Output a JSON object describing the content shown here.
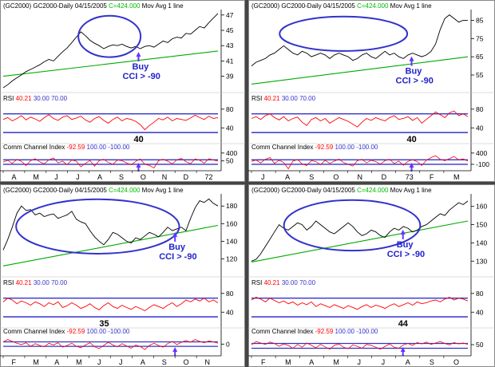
{
  "colors": {
    "price": "#000000",
    "ma": "#00aa00",
    "rsi": "#ff0000",
    "cci": "#ff0000",
    "level": "#3333cc",
    "annotation": "#2222cc",
    "ellipse": "#3333cc",
    "arrow": "#6633ff",
    "header_value": "#ff0000",
    "header_blue": "#3333cc",
    "header_green": "#00bb00",
    "tick": "#000000",
    "separator": "#444444"
  },
  "chart_data": [
    {
      "type": "line",
      "header": {
        "symbol": "(GC2000) GC2000-Daily",
        "date": "04/15/2005",
        "close": "C=424.000",
        "ma": "Mov Avg 1 line"
      },
      "price": {
        "y_ticks": [
          39,
          41,
          43,
          45,
          47
        ],
        "ylim": [
          37.5,
          47.5
        ],
        "values": [
          37.5,
          37.9,
          38.4,
          38.8,
          39.2,
          39.6,
          39.9,
          40.2,
          40.5,
          40.9,
          41.2,
          41.0,
          41.6,
          42.2,
          42.7,
          43.4,
          44.1,
          44.8,
          44.3,
          43.7,
          43.3,
          43.0,
          42.6,
          42.9,
          43.1,
          43.0,
          43.2,
          42.9,
          42.7,
          42.9,
          42.6,
          42.9,
          43.0,
          42.8,
          43.2,
          43.6,
          43.4,
          43.9,
          44.1,
          44.0,
          44.6,
          44.5,
          45.0,
          45.5,
          45.3,
          46.0,
          46.6,
          47.2
        ],
        "ma": [
          39.0,
          42.3
        ],
        "annotation": [
          "Buy",
          "CCI > -90"
        ],
        "ellipse": [
          0.35,
          0.64,
          0.06,
          0.6
        ],
        "arrow_x": 0.63
      },
      "rsi": {
        "label": "RSI",
        "value": "40.21",
        "low": "30.00",
        "high": "70.00",
        "y_ticks": [
          40,
          80
        ],
        "ylim": [
          20,
          95
        ],
        "low_line": 30,
        "high_line": 70,
        "values": [
          58,
          62,
          55,
          60,
          66,
          57,
          63,
          59,
          54,
          62,
          68,
          60,
          56,
          63,
          66,
          58,
          61,
          65,
          57,
          52,
          60,
          64,
          56,
          50,
          58,
          63,
          55,
          60,
          58,
          54,
          47,
          36,
          45,
          52,
          60,
          57,
          63,
          55,
          60,
          58,
          56,
          61,
          67,
          62,
          58,
          65,
          60,
          62
        ],
        "callout": "40",
        "callout_x": 0.63
      },
      "cci": {
        "label": "Comm Channel Index",
        "value": "-92.59",
        "p100": "100.00",
        "m100": "-100.00",
        "y_ticks": [
          400,
          50
        ],
        "ylim": [
          -350,
          500
        ],
        "p_line": 100,
        "m_line": -100,
        "values": [
          0,
          80,
          -60,
          120,
          30,
          -150,
          60,
          150,
          10,
          -80,
          100,
          180,
          -40,
          40,
          -120,
          90,
          40,
          -210,
          -60,
          70,
          -180,
          60,
          120,
          -20,
          -100,
          90,
          60,
          -40,
          -120,
          30,
          140,
          -100,
          -150,
          -260,
          60,
          120,
          40,
          -80,
          100,
          160,
          20,
          -70,
          140,
          80,
          -50,
          150,
          90,
          40
        ],
        "arrow_x": 0.63
      },
      "x_labels": [
        "A",
        "M",
        "J",
        "J",
        "A",
        "S",
        "O",
        "N",
        "D",
        "72"
      ]
    },
    {
      "type": "line",
      "header": {
        "symbol": "(GC2000) GC2000-Daily",
        "date": "04/15/2005",
        "close": "C=424.000",
        "ma": "Mov Avg 1 line"
      },
      "price": {
        "y_ticks": [
          55,
          65,
          75,
          85
        ],
        "ylim": [
          48,
          90
        ],
        "values": [
          60,
          62,
          63,
          64,
          66,
          67,
          69,
          71,
          69,
          67,
          66,
          68,
          67,
          65,
          66,
          67,
          66,
          64,
          66,
          67,
          66,
          65,
          63,
          64,
          66,
          67,
          65,
          64,
          66,
          68,
          66,
          67,
          65,
          64,
          66,
          67,
          66,
          65,
          66,
          68,
          72,
          80,
          86,
          88,
          86,
          84,
          85,
          85
        ],
        "ma": [
          50,
          65
        ],
        "annotation": [
          "Buy",
          "CCI > -90"
        ],
        "ellipse": [
          0.13,
          0.72,
          0.07,
          0.52
        ],
        "arrow_x": 0.74
      },
      "rsi": {
        "label": "RSI",
        "value": "40.21",
        "low": "30.00",
        "high": "70.00",
        "y_ticks": [
          80,
          40
        ],
        "ylim": [
          20,
          95
        ],
        "low_line": 30,
        "high_line": 70,
        "values": [
          60,
          64,
          58,
          66,
          70,
          62,
          57,
          64,
          55,
          60,
          63,
          52,
          45,
          58,
          62,
          55,
          60,
          50,
          56,
          62,
          58,
          54,
          48,
          42,
          52,
          60,
          56,
          62,
          58,
          55,
          62,
          66,
          58,
          60,
          64,
          56,
          62,
          50,
          58,
          66,
          74,
          68,
          62,
          72,
          76,
          66,
          70,
          64
        ],
        "callout": "40",
        "callout_x": 0.74
      },
      "cci": {
        "label": "Comm Channel Index",
        "value": "-92.59",
        "p100": "100.00",
        "m100": "-100.00",
        "y_ticks": [
          400,
          -100
        ],
        "ylim": [
          -350,
          500
        ],
        "p_line": 100,
        "m_line": -100,
        "values": [
          30,
          90,
          -40,
          120,
          200,
          -60,
          80,
          -20,
          -300,
          40,
          110,
          -80,
          -150,
          60,
          20,
          -120,
          80,
          -60,
          40,
          130,
          -20,
          -100,
          -180,
          60,
          120,
          -40,
          80,
          20,
          -90,
          60,
          120,
          -60,
          40,
          -140,
          30,
          100,
          20,
          -150,
          80,
          200,
          280,
          120,
          60,
          150,
          250,
          100,
          140,
          40
        ],
        "arrow_x": 0.74
      },
      "x_labels": [
        "J",
        "A",
        "S",
        "O",
        "N",
        "D",
        "73",
        "F",
        "M"
      ]
    },
    {
      "type": "line",
      "header": {
        "symbol": "(GC2000) GC2000-Daily",
        "date": "04/15/2005",
        "close": "C=424.000",
        "ma": "Mov Avg 1 line"
      },
      "price": {
        "y_ticks": [
          120,
          140,
          160,
          180
        ],
        "ylim": [
          105,
          192
        ],
        "values": [
          130,
          142,
          156,
          172,
          180,
          175,
          176,
          170,
          172,
          168,
          170,
          171,
          166,
          168,
          170,
          174,
          165,
          162,
          160,
          152,
          145,
          140,
          136,
          142,
          150,
          148,
          144,
          140,
          138,
          144,
          142,
          146,
          150,
          148,
          145,
          150,
          156,
          152,
          154,
          156,
          152,
          166,
          178,
          186,
          184,
          188,
          183,
          180
        ],
        "ma": [
          112,
          158
        ],
        "annotation": [
          "Buy",
          "CCI > -90"
        ],
        "ellipse": [
          0.06,
          0.82,
          0.05,
          0.76
        ],
        "arrow_x": 0.8
      },
      "rsi": {
        "label": "RSI",
        "value": "40.21",
        "low": "30.00",
        "high": "70.00",
        "y_ticks": [
          80,
          40
        ],
        "ylim": [
          20,
          95
        ],
        "low_line": 30,
        "high_line": 70,
        "values": [
          62,
          70,
          66,
          58,
          64,
          60,
          55,
          62,
          58,
          52,
          60,
          56,
          62,
          50,
          54,
          60,
          55,
          48,
          52,
          58,
          50,
          45,
          54,
          60,
          52,
          48,
          55,
          50,
          46,
          52,
          48,
          43,
          50,
          56,
          52,
          48,
          55,
          60,
          52,
          58,
          66,
          62,
          68,
          64,
          70,
          62,
          66,
          60
        ],
        "callout": "35",
        "callout_x": 0.47
      },
      "cci": {
        "label": "Comm Channel Index",
        "value": "-92.59",
        "p100": "100.00",
        "m100": "-100.00",
        "y_ticks": [
          0
        ],
        "ylim": [
          -450,
          400
        ],
        "p_line": 100,
        "m_line": -100,
        "values": [
          100,
          200,
          120,
          40,
          -20,
          60,
          -100,
          20,
          -60,
          -120,
          40,
          -40,
          60,
          -140,
          -60,
          40,
          -100,
          -160,
          -40,
          60,
          -120,
          -200,
          -60,
          80,
          -40,
          -120,
          20,
          -80,
          -180,
          -40,
          -110,
          -240,
          -60,
          40,
          -60,
          -140,
          20,
          120,
          -20,
          80,
          160,
          80,
          200,
          120,
          60,
          140,
          100,
          40
        ],
        "arrow_x": 0.8
      },
      "x_labels": [
        "F",
        "M",
        "A",
        "M",
        "J",
        "J",
        "A",
        "S",
        "O",
        "N"
      ]
    },
    {
      "type": "line",
      "header": {
        "symbol": "(GC2000) GC2000-Daily",
        "date": "04/15/2005",
        "close": "C=424.000",
        "ma": "Mov Avg 1 line"
      },
      "price": {
        "y_ticks": [
          130,
          140,
          150,
          160
        ],
        "ylim": [
          124,
          166
        ],
        "values": [
          130,
          131,
          134,
          138,
          142,
          146,
          150,
          148,
          147,
          149,
          151,
          150,
          147,
          149,
          152,
          150,
          148,
          146,
          145,
          147,
          149,
          151,
          149,
          146,
          144,
          145,
          147,
          146,
          144,
          143,
          146,
          148,
          147,
          149,
          148,
          146,
          147,
          149,
          150,
          152,
          154,
          156,
          155,
          158,
          160,
          162,
          161,
          163
        ],
        "ma": [
          129.5,
          152
        ],
        "annotation": [
          "Buy",
          "CCI > -90"
        ],
        "ellipse": [
          0.15,
          0.78,
          0.06,
          0.72
        ],
        "arrow_x": 0.7
      },
      "rsi": {
        "label": "RSI",
        "value": "40.21",
        "low": "30.00",
        "high": "70.00",
        "y_ticks": [
          80,
          40
        ],
        "ylim": [
          20,
          95
        ],
        "low_line": 30,
        "high_line": 70,
        "values": [
          66,
          72,
          68,
          62,
          70,
          65,
          60,
          64,
          58,
          62,
          55,
          60,
          56,
          62,
          52,
          58,
          54,
          50,
          56,
          52,
          48,
          54,
          50,
          46,
          52,
          56,
          50,
          55,
          52,
          48,
          54,
          58,
          52,
          56,
          60,
          55,
          62,
          58,
          60,
          64,
          66,
          62,
          68,
          72,
          66,
          70,
          68,
          64
        ],
        "callout": "44",
        "callout_x": 0.7
      },
      "cci": {
        "label": "Comm Channel Index",
        "value": "-92.59",
        "p100": "100.00",
        "m100": "-100.00",
        "y_ticks": [
          50
        ],
        "ylim": [
          -350,
          450
        ],
        "p_line": 100,
        "m_line": -100,
        "values": [
          40,
          180,
          120,
          60,
          160,
          100,
          -20,
          80,
          20,
          -100,
          60,
          -60,
          120,
          20,
          -80,
          60,
          -40,
          -140,
          20,
          80,
          -60,
          -120,
          40,
          -20,
          -100,
          60,
          20,
          -60,
          -140,
          -20,
          80,
          -60,
          -100,
          40,
          100,
          20,
          140,
          80,
          160,
          60,
          120,
          180,
          100,
          40,
          140,
          80,
          120,
          60
        ],
        "arrow_x": 0.7
      },
      "x_labels": [
        "F",
        "M",
        "A",
        "M",
        "J",
        "J",
        "A",
        "S",
        "O"
      ]
    }
  ]
}
